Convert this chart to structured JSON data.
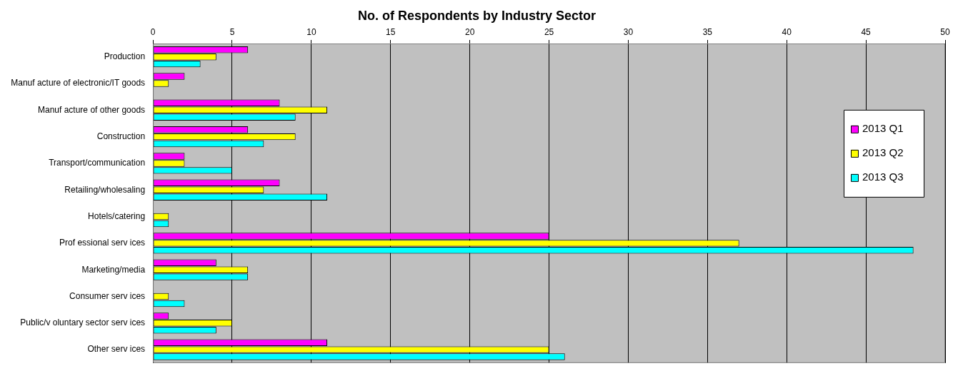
{
  "chart_data": {
    "type": "bar",
    "orientation": "horizontal",
    "title": "No. of Respondents by Industry Sector",
    "categories": [
      "Production",
      "Manuf acture of electronic/IT goods",
      "Manuf acture of other goods",
      "Construction",
      "Transport/communication",
      "Retailing/wholesaling",
      "Hotels/catering",
      "Prof essional serv ices",
      "Marketing/media",
      "Consumer serv ices",
      "Public/v oluntary sector serv ices",
      "Other serv ices"
    ],
    "series": [
      {
        "name": "2013 Q1",
        "color": "#ff00ff",
        "values": [
          6,
          2,
          8,
          6,
          2,
          8,
          0,
          25,
          4,
          0,
          1,
          11
        ]
      },
      {
        "name": "2013 Q2",
        "color": "#ffff00",
        "values": [
          4,
          1,
          11,
          9,
          2,
          7,
          1,
          37,
          6,
          1,
          5,
          25
        ]
      },
      {
        "name": "2013 Q3",
        "color": "#00ffff",
        "values": [
          3,
          0,
          9,
          7,
          5,
          11,
          1,
          48,
          6,
          2,
          4,
          26
        ]
      }
    ],
    "xlim": [
      0,
      50
    ],
    "xticks": [
      0,
      5,
      10,
      15,
      20,
      25,
      30,
      35,
      40,
      45,
      50
    ],
    "grid": "x",
    "legend": "right"
  }
}
